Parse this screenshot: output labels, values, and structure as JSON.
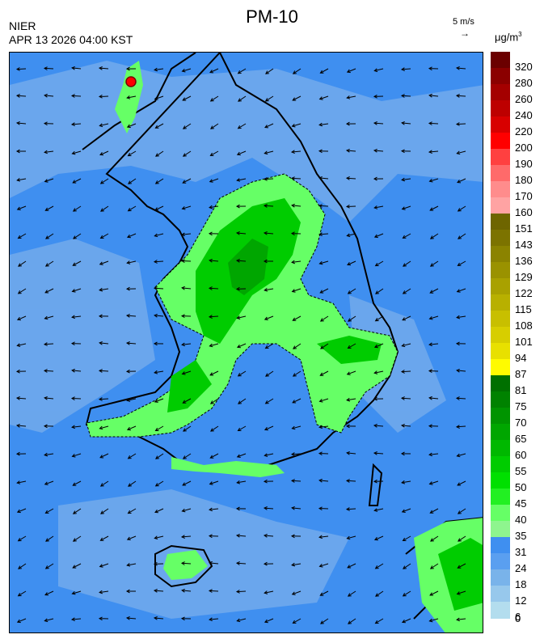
{
  "header": {
    "title": "PM-10",
    "org": "NIER",
    "datetime": "APR 13 2026 04:00 KST",
    "wind_scale_label": "5 m/s",
    "wind_scale_arrow": "→",
    "unit_prefix": "μg/m",
    "unit_exponent": "3"
  },
  "legend": {
    "labels": [
      "320",
      "280",
      "260",
      "240",
      "220",
      "200",
      "190",
      "180",
      "170",
      "160",
      "151",
      "143",
      "136",
      "129",
      "122",
      "115",
      "108",
      "101",
      "94",
      "87",
      "81",
      "75",
      "70",
      "65",
      "60",
      "55",
      "50",
      "45",
      "40",
      "35",
      "31",
      "24",
      "18",
      "12",
      "6",
      "0"
    ],
    "colors": [
      "#6b0000",
      "#8b0000",
      "#a40000",
      "#bd0000",
      "#d80000",
      "#ff0000",
      "#ff4040",
      "#ff6a6a",
      "#ff8c8c",
      "#ffa3a3",
      "#6e6500",
      "#7c7300",
      "#8b8300",
      "#9a9200",
      "#a9a100",
      "#b8b000",
      "#c8bf00",
      "#d7ce00",
      "#e8e000",
      "#fffb00",
      "#007000",
      "#008200",
      "#009400",
      "#00a600",
      "#00b800",
      "#00cc00",
      "#00e000",
      "#22f022",
      "#66ff66",
      "#8ef58e",
      "#3f8ff0",
      "#5a9ff0",
      "#79b3ea",
      "#97c8ec",
      "#b3ddee"
    ]
  },
  "map": {
    "background_color": "#3f8ff0",
    "concentration_colors": {
      "low": "#6fa9ec",
      "mid": "#66ff66",
      "high": "#00cc00",
      "veryhigh": "#00a600",
      "peak": "#ff0000"
    },
    "wind_arrow_direction": "generally westward"
  }
}
